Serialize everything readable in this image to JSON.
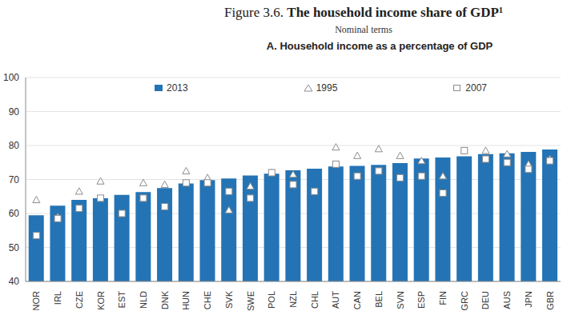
{
  "chart_data": {
    "type": "bar",
    "title": "Figure 3.6. The household income share of GDP¹",
    "subtitle": "Nominal terms",
    "panel_title": "A. Household income as a percentage of GDP",
    "categories": [
      "NOR",
      "IRL",
      "CZE",
      "KOR",
      "EST",
      "NLD",
      "DNK",
      "HUN",
      "CHE",
      "SVK",
      "SWE",
      "POL",
      "NZL",
      "CHL",
      "AUT",
      "CAN",
      "BEL",
      "SVN",
      "ESP",
      "FIN",
      "GRC",
      "DEU",
      "AUS",
      "JPN",
      "GBR"
    ],
    "series": [
      {
        "name": "2013",
        "type": "bar",
        "color": "#2474b5",
        "values": [
          59.5,
          62.3,
          64,
          64.5,
          65.5,
          66.3,
          67.5,
          68.8,
          69.8,
          70.3,
          71.2,
          71.7,
          72.7,
          73.2,
          73.8,
          74,
          74.3,
          74.8,
          76.2,
          76.5,
          76.8,
          77.5,
          77.7,
          78.1,
          78.8
        ]
      },
      {
        "name": "1995",
        "type": "scatter",
        "marker": "triangle",
        "color": "#8c8c8c",
        "values": [
          64,
          59,
          66.5,
          69.5,
          null,
          69,
          68.5,
          72.5,
          70.5,
          61,
          68,
          72,
          71.5,
          null,
          79.5,
          77,
          79,
          77,
          75.5,
          71,
          null,
          78.5,
          77.5,
          74.5,
          76
        ]
      },
      {
        "name": "2007",
        "type": "scatter",
        "marker": "square",
        "color": "#8c8c8c",
        "values": [
          53.5,
          58.5,
          61.5,
          64.5,
          60,
          64.5,
          62,
          69,
          69,
          66.5,
          64.5,
          72,
          68.5,
          66.5,
          74.5,
          71,
          72.5,
          70.5,
          71,
          66,
          78.5,
          76,
          75,
          73,
          75.5
        ]
      }
    ],
    "ylim": [
      40,
      100
    ],
    "yticks": [
      40,
      50,
      60,
      70,
      80,
      90,
      100
    ],
    "grid": true,
    "legend": "top"
  }
}
